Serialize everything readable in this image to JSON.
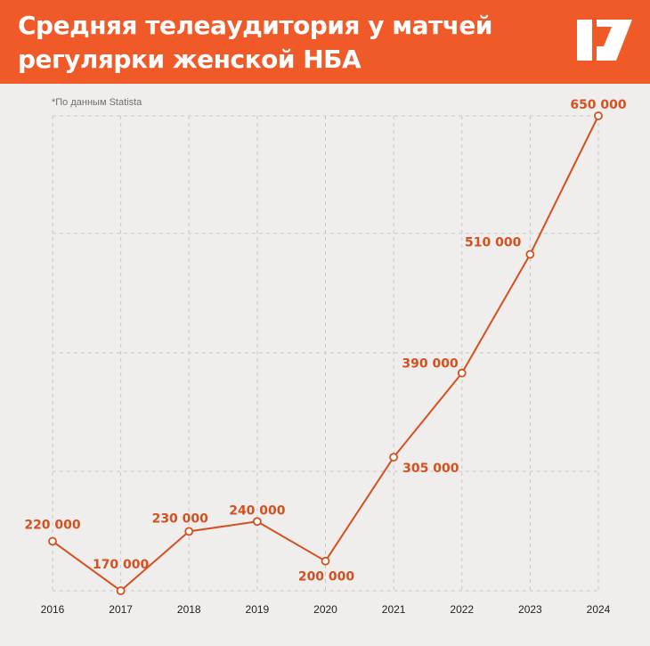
{
  "header": {
    "title_line1": "Средняя телеаудитория у матчей",
    "title_line2": "регулярки женской НБА",
    "logo": "brand-logo-icon"
  },
  "source_note": "*По данным Statista",
  "colors": {
    "header_bg": "#f05a28",
    "line": "#d4501e",
    "label": "#d4501e",
    "background": "#efeeec",
    "grid": "#c8c8c8"
  },
  "chart_data": {
    "type": "line",
    "title": "Средняя телеаудитория у матчей регулярки женской НБА",
    "categories": [
      "2016",
      "2017",
      "2018",
      "2019",
      "2020",
      "2021",
      "2022",
      "2023",
      "2024"
    ],
    "values": [
      220000,
      170000,
      230000,
      240000,
      200000,
      305000,
      390000,
      510000,
      650000
    ],
    "value_labels": [
      "220 000",
      "170 000",
      "230 000",
      "240 000",
      "200 000",
      "305 000",
      "390 000",
      "510 000",
      "650 000"
    ],
    "xlabel": "",
    "ylabel": "",
    "ylim": [
      170000,
      650000
    ],
    "grid": true,
    "y_axis_labels": false
  }
}
